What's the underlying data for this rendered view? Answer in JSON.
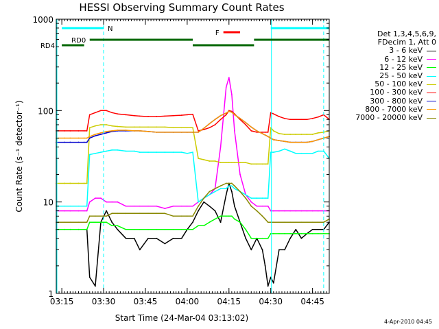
{
  "chart_data": {
    "type": "line",
    "title": "HESSI Observing Summary Count Rates",
    "xlabel": "Start Time (24-Mar-04 03:13:02)",
    "ylabel": "Count Rate (s⁻¹ detector⁻¹)",
    "ylog": true,
    "ylim": [
      1,
      1000
    ],
    "xlim_minutes": [
      0,
      98
    ],
    "xticks": [
      {
        "label": "03:15",
        "minute": 2
      },
      {
        "label": "03:30",
        "minute": 17
      },
      {
        "label": "03:45",
        "minute": 32
      },
      {
        "label": "04:00",
        "minute": 47
      },
      {
        "label": "04:15",
        "minute": 62
      },
      {
        "label": "04:30",
        "minute": 77
      },
      {
        "label": "04:45",
        "minute": 92
      }
    ],
    "yticks": [
      {
        "label": "1",
        "value": 1
      },
      {
        "label": "10",
        "value": 10
      },
      {
        "label": "100",
        "value": 100
      },
      {
        "label": "1000",
        "value": 1000
      }
    ],
    "legend_title": [
      "Det 1,3,4,5,6,9,",
      "FDecim 1, Att 0"
    ],
    "legend_placement": "right",
    "series": [
      {
        "name": "3 - 6 keV",
        "color": "#000000",
        "x": [
          0,
          3,
          5,
          8,
          10,
          11,
          12,
          14,
          16,
          18,
          20,
          22,
          25,
          28,
          30,
          33,
          36,
          39,
          42,
          45,
          47,
          49,
          51,
          53,
          55,
          57,
          59,
          61,
          62,
          63,
          64,
          66,
          68,
          70,
          72,
          74,
          75,
          76,
          77,
          78,
          80,
          82,
          84,
          86,
          88,
          90,
          92,
          94,
          96,
          98
        ],
        "y": [
          5,
          5,
          5,
          5,
          5,
          5,
          1.5,
          1.2,
          6,
          8,
          6,
          5,
          4,
          4,
          3,
          4,
          4,
          3.5,
          4,
          4,
          5,
          6,
          8,
          10,
          9,
          8,
          6,
          12,
          16,
          13,
          9,
          6,
          4,
          3,
          4,
          3,
          2,
          1.2,
          1.5,
          1.3,
          3,
          3,
          4,
          5,
          4,
          4.5,
          5,
          5,
          5,
          6
        ]
      },
      {
        "name": "6 - 12 keV",
        "color": "#ff00ff",
        "x": [
          0,
          3,
          5,
          8,
          10,
          11,
          12,
          14,
          16,
          18,
          20,
          22,
          25,
          28,
          30,
          33,
          36,
          39,
          42,
          45,
          47,
          49,
          51,
          53,
          55,
          57,
          59,
          61,
          62,
          63,
          64,
          66,
          68,
          70,
          72,
          74,
          75,
          76,
          77,
          78,
          80,
          82,
          84,
          86,
          88,
          90,
          92,
          94,
          96,
          98
        ],
        "y": [
          8,
          8,
          8,
          8,
          8,
          8,
          10,
          11,
          11,
          10,
          10,
          10,
          9,
          9,
          9,
          9,
          9,
          8.5,
          9,
          9,
          9,
          9,
          10,
          11,
          12,
          14,
          40,
          180,
          230,
          150,
          60,
          20,
          12,
          10,
          9,
          9,
          9,
          9,
          8,
          8,
          8,
          8,
          8,
          8,
          8,
          8,
          8,
          8,
          8,
          8
        ]
      },
      {
        "name": "12 - 25 keV",
        "color": "#00ff00",
        "x": [
          0,
          3,
          5,
          8,
          10,
          11,
          12,
          14,
          16,
          18,
          20,
          22,
          25,
          28,
          30,
          33,
          36,
          39,
          42,
          45,
          47,
          49,
          51,
          53,
          55,
          57,
          59,
          61,
          62,
          63,
          64,
          66,
          68,
          70,
          72,
          74,
          75,
          76,
          77,
          78,
          80,
          82,
          84,
          86,
          88,
          90,
          92,
          94,
          96,
          98
        ],
        "y": [
          5,
          5,
          5,
          5,
          5,
          5,
          6,
          6,
          6,
          6,
          5.5,
          5.5,
          5,
          5,
          5,
          5,
          5,
          5,
          5,
          5,
          5,
          5,
          5.5,
          5.5,
          6,
          6.5,
          7,
          7,
          7,
          7,
          6.5,
          6,
          5,
          4,
          4,
          4,
          4,
          4,
          4.5,
          4.5,
          4.5,
          4.5,
          4.5,
          4.5,
          4.5,
          4.5,
          4.5,
          4.5,
          4.5,
          4.5
        ]
      },
      {
        "name": "25 - 50 keV",
        "color": "#00ffff",
        "x": [
          0,
          3,
          5,
          8,
          10,
          11,
          12,
          14,
          16,
          18,
          20,
          22,
          25,
          28,
          30,
          33,
          36,
          39,
          42,
          45,
          47,
          49,
          51,
          53,
          55,
          57,
          59,
          61,
          62,
          63,
          64,
          66,
          68,
          70,
          72,
          74,
          75,
          76,
          77,
          78,
          80,
          82,
          84,
          86,
          88,
          90,
          92,
          94,
          96,
          98
        ],
        "y": [
          9,
          9,
          9,
          9,
          9,
          9,
          33,
          34,
          35,
          36,
          37,
          37,
          36,
          36,
          35,
          35,
          35,
          35,
          35,
          35,
          34,
          35,
          10,
          11,
          12,
          13,
          14,
          14,
          15,
          15,
          14,
          13,
          12,
          11,
          11,
          11,
          11,
          11,
          35,
          35,
          36,
          38,
          36,
          34,
          34,
          34,
          34,
          36,
          36,
          30
        ]
      },
      {
        "name": "50 - 100 keV",
        "color": "#cccc00",
        "x": [
          0,
          3,
          5,
          8,
          10,
          11,
          12,
          14,
          16,
          18,
          20,
          22,
          25,
          28,
          30,
          33,
          36,
          39,
          42,
          45,
          47,
          49,
          51,
          53,
          55,
          57,
          59,
          61,
          62,
          63,
          64,
          66,
          68,
          70,
          72,
          74,
          75,
          76,
          77,
          78,
          80,
          82,
          84,
          86,
          88,
          90,
          92,
          94,
          96,
          98
        ],
        "y": [
          16,
          16,
          16,
          16,
          16,
          16,
          65,
          68,
          70,
          70,
          68,
          67,
          66,
          66,
          66,
          66,
          66,
          66,
          65,
          65,
          65,
          65,
          30,
          29,
          28,
          28,
          27,
          27,
          27,
          27,
          27,
          27,
          27,
          26,
          26,
          26,
          26,
          26,
          65,
          60,
          56,
          55,
          55,
          55,
          55,
          55,
          55,
          57,
          58,
          60
        ]
      },
      {
        "name": "100 - 300 keV",
        "color": "#ff0000",
        "x": [
          0,
          3,
          5,
          8,
          10,
          11,
          12,
          14,
          16,
          18,
          20,
          22,
          25,
          28,
          30,
          33,
          36,
          39,
          42,
          45,
          47,
          49,
          51,
          53,
          55,
          57,
          59,
          61,
          62,
          63,
          64,
          66,
          68,
          70,
          72,
          74,
          75,
          76,
          77,
          78,
          80,
          82,
          84,
          86,
          88,
          90,
          92,
          94,
          96,
          98
        ],
        "y": [
          60,
          60,
          60,
          60,
          60,
          60,
          90,
          95,
          100,
          100,
          95,
          92,
          90,
          88,
          87,
          86,
          86,
          87,
          88,
          89,
          90,
          91,
          60,
          62,
          65,
          70,
          80,
          90,
          100,
          98,
          92,
          80,
          70,
          60,
          58,
          58,
          58,
          58,
          95,
          92,
          86,
          82,
          80,
          80,
          80,
          80,
          82,
          85,
          90,
          80
        ]
      },
      {
        "name": "300 - 800 keV",
        "color": "#0000cc",
        "x": [
          0,
          3,
          5,
          8,
          10,
          11,
          12,
          14,
          16,
          18,
          20,
          22,
          25,
          28,
          30,
          33,
          36,
          39,
          42,
          45,
          47,
          49,
          51,
          53,
          55,
          57,
          59,
          61,
          62,
          63,
          64,
          66,
          68,
          70,
          72,
          74,
          75,
          76,
          77,
          78,
          80,
          82,
          84,
          86,
          88,
          90,
          92,
          94,
          96,
          98
        ],
        "y": [
          45,
          45,
          45,
          45,
          45,
          45,
          50,
          53,
          55,
          57,
          59,
          60,
          60,
          60,
          60,
          59,
          58,
          58,
          58,
          58,
          58,
          58,
          58,
          64,
          72,
          80,
          88,
          94,
          98,
          96,
          90,
          82,
          74,
          66,
          60,
          56,
          54,
          52,
          50,
          48,
          47,
          46,
          45,
          45,
          45,
          45,
          46,
          48,
          50,
          52
        ]
      },
      {
        "name": "800 - 7000 keV",
        "color": "#ff9900",
        "x": [
          0,
          3,
          5,
          8,
          10,
          11,
          12,
          14,
          16,
          18,
          20,
          22,
          25,
          28,
          30,
          33,
          36,
          39,
          42,
          45,
          47,
          49,
          51,
          53,
          55,
          57,
          59,
          61,
          62,
          63,
          64,
          66,
          68,
          70,
          72,
          74,
          75,
          76,
          77,
          78,
          80,
          82,
          84,
          86,
          88,
          90,
          92,
          94,
          96,
          98
        ],
        "y": [
          50,
          50,
          50,
          50,
          50,
          50,
          52,
          55,
          57,
          59,
          60,
          61,
          61,
          60,
          60,
          59,
          58,
          58,
          58,
          58,
          58,
          58,
          58,
          64,
          72,
          80,
          88,
          94,
          98,
          96,
          90,
          82,
          74,
          66,
          60,
          56,
          54,
          52,
          50,
          48,
          47,
          46,
          45,
          45,
          45,
          45,
          46,
          48,
          50,
          52
        ]
      },
      {
        "name": "7000 - 20000 keV",
        "color": "#888800",
        "x": [
          0,
          3,
          5,
          8,
          10,
          11,
          12,
          14,
          16,
          18,
          20,
          22,
          25,
          28,
          30,
          33,
          36,
          39,
          42,
          45,
          47,
          49,
          51,
          53,
          55,
          57,
          59,
          61,
          62,
          63,
          64,
          66,
          68,
          70,
          72,
          74,
          75,
          76,
          77,
          78,
          80,
          82,
          84,
          86,
          88,
          90,
          92,
          94,
          96,
          98
        ],
        "y": [
          6,
          6,
          6,
          6,
          6,
          6,
          7,
          7,
          7,
          7,
          7.5,
          7.5,
          7.5,
          7.5,
          7.5,
          7.5,
          7.5,
          7.5,
          7,
          7,
          7,
          7,
          9,
          11,
          13,
          14,
          15,
          16,
          16,
          16,
          15,
          13,
          11,
          9,
          8,
          7,
          6.5,
          6,
          6,
          6,
          6,
          6,
          6,
          6,
          6,
          6,
          6,
          6,
          6,
          6.5
        ]
      }
    ],
    "annotations": {
      "attenuator": {
        "label": "RD4",
        "color": "#006600"
      },
      "decimation": {
        "label": "RD0",
        "color": "#006600",
        "segments": [
          [
            2,
            10
          ],
          [
            12,
            49
          ],
          [
            49,
            71
          ],
          [
            71,
            98
          ]
        ]
      },
      "night": {
        "label": "N",
        "color": "#00ffff",
        "segments": [
          [
            2,
            17
          ],
          [
            77,
            98
          ]
        ]
      },
      "flare": {
        "label": "F",
        "color": "#ff0000",
        "segments": [
          [
            60,
            66
          ]
        ]
      },
      "saa_lines_minutes": [
        0,
        77
      ],
      "dashed_lines_minutes": [
        17,
        96
      ]
    }
  },
  "footer": {
    "date_stamp": "4-Apr-2010 04:45"
  }
}
